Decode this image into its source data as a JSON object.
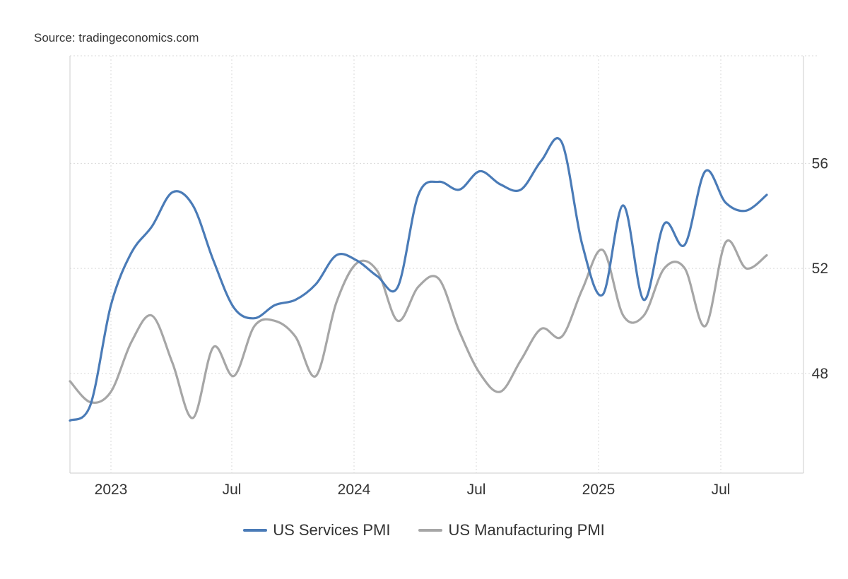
{
  "source": "Source: tradingeconomics.com",
  "colors": {
    "services": "#4a7bb7",
    "manufacturing": "#a6a6a6",
    "grid": "#d9d9d9",
    "axis": "#cccccc"
  },
  "chart_data": {
    "type": "line",
    "title": "",
    "xlabel": "",
    "ylabel": "",
    "x_ticks": [
      "2023",
      "Jul",
      "2024",
      "Jul",
      "2025",
      "Jul"
    ],
    "y_ticks": [
      48,
      52,
      56
    ],
    "ylim": [
      44.2,
      60.1
    ],
    "x": [
      "2022-12",
      "2023-01",
      "2023-02",
      "2023-03",
      "2023-04",
      "2023-05",
      "2023-06",
      "2023-07",
      "2023-08",
      "2023-09",
      "2023-10",
      "2023-11",
      "2023-12",
      "2024-01",
      "2024-02",
      "2024-03",
      "2024-04",
      "2024-05",
      "2024-06",
      "2024-07",
      "2024-08",
      "2024-09",
      "2024-10",
      "2024-11",
      "2024-12",
      "2025-01",
      "2025-02",
      "2025-03",
      "2025-04",
      "2025-05",
      "2025-06",
      "2025-07",
      "2025-08",
      "2025-09",
      "2025-10"
    ],
    "series": [
      {
        "name": "US Services PMI",
        "color": "#4a7bb7",
        "values": [
          46.2,
          46.8,
          50.6,
          52.6,
          53.6,
          54.9,
          54.4,
          52.3,
          50.5,
          50.1,
          50.6,
          50.8,
          51.4,
          52.5,
          52.3,
          51.7,
          51.3,
          54.8,
          55.3,
          55.0,
          55.7,
          55.2,
          55.0,
          56.1,
          56.8,
          52.9,
          51.0,
          54.4,
          50.8,
          53.7,
          52.9,
          55.7,
          54.5,
          54.2,
          54.8
        ]
      },
      {
        "name": "US Manufacturing PMI",
        "color": "#a6a6a6",
        "values": [
          47.7,
          46.9,
          47.3,
          49.2,
          50.2,
          48.4,
          46.3,
          49.0,
          47.9,
          49.8,
          50.0,
          49.4,
          47.9,
          50.7,
          52.2,
          51.9,
          50.0,
          51.3,
          51.6,
          49.6,
          48.0,
          47.3,
          48.5,
          49.7,
          49.4,
          51.2,
          52.7,
          50.2,
          50.2,
          52.0,
          52.0,
          49.8,
          53.0,
          52.0,
          52.5
        ]
      }
    ]
  },
  "legend": {
    "services": "US Services PMI",
    "manufacturing": "US Manufacturing PMI"
  }
}
